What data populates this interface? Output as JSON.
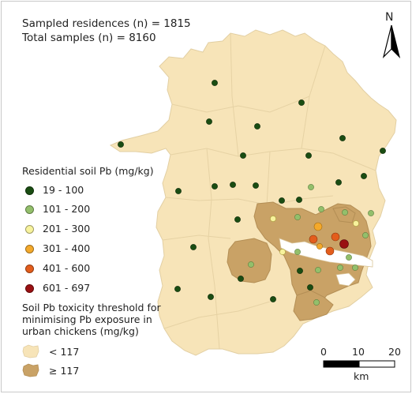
{
  "header": {
    "residences": "Sampled residences (n) = 1815",
    "samples": "Total samples (n) = 8160"
  },
  "north_label": "N",
  "soil_legend": {
    "title": "Residential soil Pb (mg/kg)",
    "classes": [
      {
        "label": "19 - 100",
        "color": "#1a4d12"
      },
      {
        "label": "101 - 200",
        "color": "#93bf6b"
      },
      {
        "label": "201 - 300",
        "color": "#f7f29c"
      },
      {
        "label": "301 - 400",
        "color": "#f4a92b"
      },
      {
        "label": "401 - 600",
        "color": "#e35d1c"
      },
      {
        "label": "601 - 697",
        "color": "#9a1012"
      }
    ]
  },
  "threshold_legend": {
    "title_line1": "Soil Pb toxicity threshold for",
    "title_line2": "minimising Pb exposure in",
    "title_line3": "urban chickens (mg/kg)",
    "classes": [
      {
        "label": "< 117",
        "color": "#f7e4b8"
      },
      {
        "label": "≥ 117",
        "color": "#c9a266"
      }
    ]
  },
  "scale_bar": {
    "tick_labels": [
      "0",
      "10",
      "20"
    ],
    "unit": "km"
  }
}
